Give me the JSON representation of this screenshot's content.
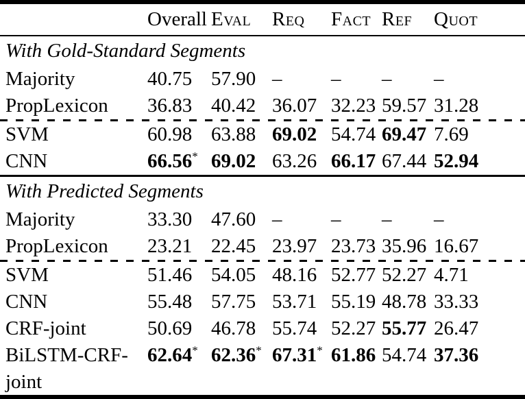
{
  "header": {
    "columns": [
      "Overall",
      "Eval",
      "Req",
      "Fact",
      "Ref",
      "Quot"
    ]
  },
  "sections": [
    {
      "title": "With Gold-Standard Segments",
      "rows": [
        {
          "label": "Majority",
          "cells": [
            {
              "t": "40.75"
            },
            {
              "t": "57.90"
            },
            {
              "t": "–"
            },
            {
              "t": "–"
            },
            {
              "t": "–"
            },
            {
              "t": "–"
            }
          ]
        },
        {
          "label": "PropLexicon",
          "cells": [
            {
              "t": "36.83"
            },
            {
              "t": "40.42"
            },
            {
              "t": "36.07"
            },
            {
              "t": "32.23"
            },
            {
              "t": "59.57"
            },
            {
              "t": "31.28"
            }
          ]
        },
        {
          "label": "SVM",
          "cells": [
            {
              "t": "60.98"
            },
            {
              "t": "63.88"
            },
            {
              "t": "69.02",
              "bold": true
            },
            {
              "t": "54.74"
            },
            {
              "t": "69.47",
              "bold": true
            },
            {
              "t": "7.69"
            }
          ]
        },
        {
          "label": "CNN",
          "cells": [
            {
              "t": "66.56",
              "bold": true,
              "sup": "*"
            },
            {
              "t": "69.02",
              "bold": true
            },
            {
              "t": "63.26"
            },
            {
              "t": "66.17",
              "bold": true
            },
            {
              "t": "67.44"
            },
            {
              "t": "52.94",
              "bold": true
            }
          ]
        }
      ]
    },
    {
      "title": "With Predicted Segments",
      "rows": [
        {
          "label": "Majority",
          "cells": [
            {
              "t": "33.30"
            },
            {
              "t": "47.60"
            },
            {
              "t": "–"
            },
            {
              "t": "–"
            },
            {
              "t": "–"
            },
            {
              "t": "–"
            }
          ]
        },
        {
          "label": "PropLexicon",
          "cells": [
            {
              "t": "23.21"
            },
            {
              "t": "22.45"
            },
            {
              "t": "23.97"
            },
            {
              "t": "23.73"
            },
            {
              "t": "35.96"
            },
            {
              "t": "16.67"
            }
          ]
        },
        {
          "label": "SVM",
          "cells": [
            {
              "t": "51.46"
            },
            {
              "t": "54.05"
            },
            {
              "t": "48.16"
            },
            {
              "t": "52.77"
            },
            {
              "t": "52.27"
            },
            {
              "t": "4.71"
            }
          ]
        },
        {
          "label": "CNN",
          "cells": [
            {
              "t": "55.48"
            },
            {
              "t": "57.75"
            },
            {
              "t": "53.71"
            },
            {
              "t": "55.19"
            },
            {
              "t": "48.78"
            },
            {
              "t": "33.33"
            }
          ]
        },
        {
          "label": "CRF-joint",
          "cells": [
            {
              "t": "50.69"
            },
            {
              "t": "46.78"
            },
            {
              "t": "55.74"
            },
            {
              "t": "52.27"
            },
            {
              "t": "55.77",
              "bold": true
            },
            {
              "t": "26.47"
            }
          ]
        },
        {
          "label": "BiLSTM-CRF-",
          "label2": "joint",
          "cells": [
            {
              "t": "62.64",
              "bold": true,
              "sup": "*"
            },
            {
              "t": "62.36",
              "bold": true,
              "sup": "*"
            },
            {
              "t": "67.31",
              "bold": true,
              "sup": "*"
            },
            {
              "t": "61.86",
              "bold": true
            },
            {
              "t": "54.74"
            },
            {
              "t": "37.36",
              "bold": true
            }
          ]
        }
      ]
    }
  ]
}
